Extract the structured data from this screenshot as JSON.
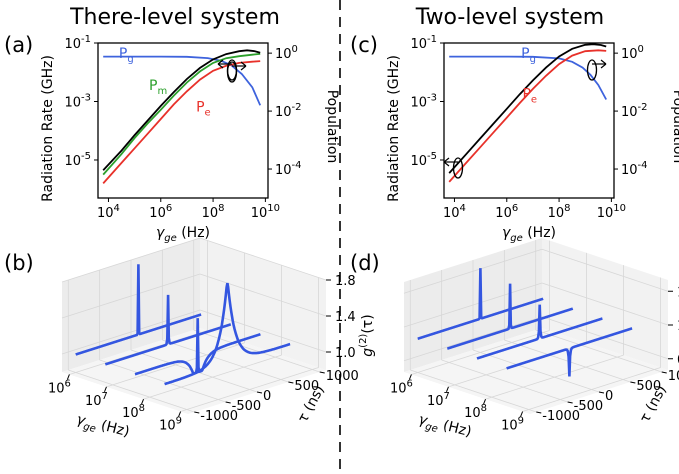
{
  "colors": {
    "pg": "#3e63dd",
    "pm": "#2ca02c",
    "pe": "#e8312a",
    "total": "#000000",
    "blue3d": "#3456e0"
  },
  "titles": {
    "left": "There-level system",
    "right": "Two-level system"
  },
  "panel_labels": {
    "a": "(a)",
    "b": "(b)",
    "c": "(c)",
    "d": "(d)"
  },
  "axes": {
    "ylabel_left": "Radiation Rate (GHz)",
    "ylabel_right": "Population",
    "xlabel_gamma": "γ_ge (Hz)",
    "tau_label": "τ (ns)",
    "g2_label": "g^(2)(τ)",
    "tick_base": "10"
  },
  "chart_data": [
    {
      "id": "a",
      "type": "line",
      "title": "There-level system",
      "xlabel": "γ_ge (Hz)",
      "ylabel": "Radiation Rate (GHz)",
      "ylabel_right": "Population",
      "xscale": "log",
      "yscale": "log",
      "xlim_exp": [
        3.6,
        10.1
      ],
      "ylim_exp": [
        -6.3,
        -1.0
      ],
      "ylim_right_exp": [
        -5.0,
        0.35
      ],
      "xticks_exp": [
        4,
        6,
        8,
        10
      ],
      "yticks_exp": [
        -5,
        -3,
        -1
      ],
      "yticks_right_exp": [
        -4,
        -2,
        0
      ],
      "series": [
        {
          "name": "Pg",
          "key": "pg",
          "axis": "right",
          "points": [
            [
              3.8,
              -0.12
            ],
            [
              5,
              -0.12
            ],
            [
              6,
              -0.12
            ],
            [
              7,
              -0.125
            ],
            [
              7.8,
              -0.17
            ],
            [
              8.3,
              -0.26
            ],
            [
              8.7,
              -0.42
            ],
            [
              9.1,
              -0.72
            ],
            [
              9.5,
              -1.18
            ],
            [
              9.8,
              -1.8
            ]
          ]
        },
        {
          "name": "Pm",
          "key": "pm",
          "axis": "left",
          "points": [
            [
              3.8,
              -5.5
            ],
            [
              4.5,
              -4.8
            ],
            [
              5,
              -4.25
            ],
            [
              5.5,
              -3.75
            ],
            [
              6,
              -3.28
            ],
            [
              6.5,
              -2.8
            ],
            [
              7,
              -2.35
            ],
            [
              7.5,
              -1.97
            ],
            [
              8,
              -1.68
            ],
            [
              8.5,
              -1.52
            ],
            [
              9,
              -1.45
            ],
            [
              9.5,
              -1.4
            ],
            [
              9.8,
              -1.37
            ]
          ]
        },
        {
          "name": "Pe",
          "key": "pe",
          "axis": "left",
          "points": [
            [
              3.8,
              -5.8
            ],
            [
              4.5,
              -5.1
            ],
            [
              5,
              -4.6
            ],
            [
              5.5,
              -4.1
            ],
            [
              6,
              -3.6
            ],
            [
              6.5,
              -3.1
            ],
            [
              7,
              -2.65
            ],
            [
              7.5,
              -2.25
            ],
            [
              8,
              -1.95
            ],
            [
              8.5,
              -1.78
            ],
            [
              9,
              -1.68
            ],
            [
              9.5,
              -1.64
            ],
            [
              9.8,
              -1.62
            ]
          ]
        },
        {
          "name": "Total",
          "key": "total",
          "axis": "left",
          "points": [
            [
              3.8,
              -5.35
            ],
            [
              4.5,
              -4.68
            ],
            [
              5,
              -4.15
            ],
            [
              5.5,
              -3.65
            ],
            [
              6,
              -3.15
            ],
            [
              6.5,
              -2.68
            ],
            [
              7,
              -2.23
            ],
            [
              7.5,
              -1.85
            ],
            [
              8,
              -1.56
            ],
            [
              8.5,
              -1.38
            ],
            [
              9,
              -1.28
            ],
            [
              9.3,
              -1.25
            ],
            [
              9.6,
              -1.28
            ],
            [
              9.8,
              -1.33
            ]
          ]
        }
      ],
      "annotations": [
        {
          "text": "Pg",
          "x_exp": 4.4,
          "y_exp": -1.52
        },
        {
          "text": "Pm",
          "x_exp": 5.55,
          "y_exp": -2.6
        },
        {
          "text": "Pe",
          "x_exp": 7.35,
          "y_exp": -3.35
        }
      ]
    },
    {
      "id": "c",
      "type": "line",
      "title": "Two-level system",
      "xlabel": "γ_ge (Hz)",
      "ylabel": "Radiation Rate (GHz)",
      "ylabel_right": "Population",
      "xscale": "log",
      "yscale": "log",
      "xlim_exp": [
        3.6,
        10.1
      ],
      "ylim_exp": [
        -6.3,
        -1.0
      ],
      "ylim_right_exp": [
        -5.0,
        0.35
      ],
      "xticks_exp": [
        4,
        6,
        8,
        10
      ],
      "yticks_exp": [
        -5,
        -3,
        -1
      ],
      "yticks_right_exp": [
        -4,
        -2,
        0
      ],
      "series": [
        {
          "name": "Pg",
          "key": "pg",
          "axis": "right",
          "points": [
            [
              3.8,
              -0.12
            ],
            [
              5,
              -0.12
            ],
            [
              6,
              -0.12
            ],
            [
              7,
              -0.125
            ],
            [
              8,
              -0.18
            ],
            [
              8.5,
              -0.3
            ],
            [
              8.9,
              -0.5
            ],
            [
              9.2,
              -0.75
            ],
            [
              9.5,
              -1.1
            ],
            [
              9.8,
              -1.6
            ]
          ]
        },
        {
          "name": "Pe",
          "key": "pe",
          "axis": "left",
          "points": [
            [
              3.8,
              -5.75
            ],
            [
              4.5,
              -5.05
            ],
            [
              5,
              -4.55
            ],
            [
              5.5,
              -4.05
            ],
            [
              6,
              -3.55
            ],
            [
              6.5,
              -3.05
            ],
            [
              7,
              -2.57
            ],
            [
              7.5,
              -2.12
            ],
            [
              8,
              -1.72
            ],
            [
              8.5,
              -1.43
            ],
            [
              9,
              -1.28
            ],
            [
              9.5,
              -1.25
            ],
            [
              9.8,
              -1.27
            ]
          ]
        },
        {
          "name": "Total",
          "key": "total",
          "axis": "left",
          "points": [
            [
              3.8,
              -5.45
            ],
            [
              4.5,
              -4.75
            ],
            [
              5,
              -4.25
            ],
            [
              5.5,
              -3.75
            ],
            [
              6,
              -3.25
            ],
            [
              6.5,
              -2.75
            ],
            [
              7,
              -2.28
            ],
            [
              7.5,
              -1.84
            ],
            [
              8,
              -1.46
            ],
            [
              8.5,
              -1.2
            ],
            [
              9,
              -1.06
            ],
            [
              9.3,
              -1.04
            ],
            [
              9.6,
              -1.07
            ],
            [
              9.8,
              -1.12
            ]
          ]
        }
      ],
      "annotations": [
        {
          "text": "Pg",
          "x_exp": 6.55,
          "y_exp": -1.52
        },
        {
          "text": "Pe",
          "x_exp": 6.6,
          "y_exp": -2.9
        }
      ]
    },
    {
      "id": "b",
      "type": "3d-line",
      "xlabel": "γ_ge (Hz)",
      "ylabel": "τ (ns)",
      "zlabel": "g^(2)(τ)",
      "x_exp": [
        6,
        7,
        8,
        9
      ],
      "y_ticks": [
        -1000,
        -500,
        0,
        500,
        1000
      ],
      "z_ticks": [
        1.0,
        1.4,
        1.8
      ],
      "zlim": [
        0.8,
        1.8
      ],
      "curves": [
        {
          "gamma_exp": 6.0,
          "g2_at_zero": 1.78,
          "baseline": 1.0,
          "width_ns": 3
        },
        {
          "gamma_exp": 6.8,
          "g2_at_zero": 1.55,
          "baseline": 1.0,
          "width_ns": 6
        },
        {
          "gamma_exp": 7.6,
          "g2_at_zero": 1.4,
          "dip": 0.55,
          "baseline": 1.0,
          "width_ns": 40
        },
        {
          "gamma_exp": 8.4,
          "g2_at_zero": 1.95,
          "baseline": 1.0,
          "width_ns": 120
        }
      ]
    },
    {
      "id": "d",
      "type": "3d-line",
      "xlabel": "γ_ge (Hz)",
      "ylabel": "τ (ns)",
      "zlabel": "g^(2)(τ)",
      "x_exp": [
        6,
        7,
        8,
        9
      ],
      "y_ticks": [
        -1000,
        -500,
        0,
        500,
        1000
      ],
      "z_ticks": [
        0.8,
        1.1,
        1.4
      ],
      "zlim": [
        0.7,
        1.5
      ],
      "curves": [
        {
          "gamma_exp": 6.0,
          "g2_at_zero": 1.45,
          "baseline": 1.0,
          "width_ns": 3
        },
        {
          "gamma_exp": 6.8,
          "g2_at_zero": 1.4,
          "baseline": 1.0,
          "width_ns": 5
        },
        {
          "gamma_exp": 7.6,
          "g2_at_zero": 1.3,
          "baseline": 1.0,
          "width_ns": 8
        },
        {
          "gamma_exp": 8.4,
          "g2_at_zero": 0.75,
          "baseline": 1.0,
          "width_ns": 10
        }
      ]
    }
  ]
}
